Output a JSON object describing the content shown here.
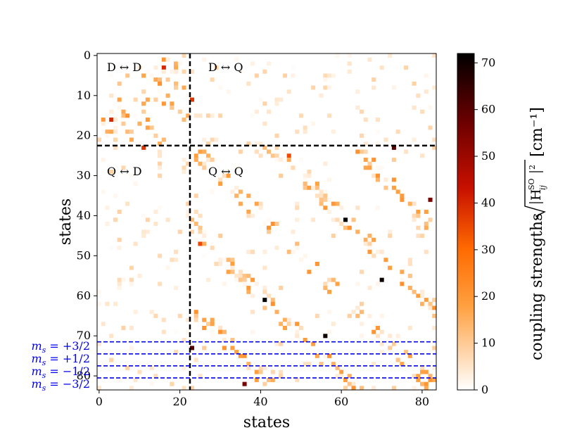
{
  "chart_data": {
    "type": "heatmap",
    "xlabel": "states",
    "ylabel": "states",
    "n_states": 84,
    "x_ticks": [
      0,
      20,
      40,
      60,
      80
    ],
    "y_ticks": [
      0,
      10,
      20,
      30,
      40,
      50,
      60,
      70,
      80
    ],
    "doublet_boundary": 23,
    "region_labels": {
      "dd": "D ↔ D",
      "dq": "D ↔ Q",
      "qd": "Q ↔ D",
      "qq": "Q ↔ Q"
    },
    "ms_lines": [
      {
        "value": 72,
        "label": "m_s = +3/2"
      },
      {
        "value": 75,
        "label": "m_s = +1/2"
      },
      {
        "value": 78,
        "label": "m_s = −1/2"
      },
      {
        "value": 81,
        "label": "m_s = −3/2"
      }
    ],
    "ms_label_parts": [
      {
        "m": "m",
        "s": "s",
        "rest": " = +3/2"
      },
      {
        "m": "m",
        "s": "s",
        "rest": " = +1/2"
      },
      {
        "m": "m",
        "s": "s",
        "rest": " = −1/2"
      },
      {
        "m": "m",
        "s": "s",
        "rest": " = −3/2"
      }
    ],
    "colorbar": {
      "label_prefix": "coupling strengths",
      "label_unit": "[cm⁻¹]",
      "label_math": "√|H_ij^SO|²",
      "min": 0,
      "max": 72,
      "ticks": [
        0,
        10,
        20,
        30,
        40,
        50,
        60,
        70
      ],
      "colormap": "gist_heat_r"
    },
    "colors": {
      "boundary_line": "#000000",
      "ms_line": "#0000ee"
    },
    "hotspots": [
      {
        "row": 41,
        "col": 61,
        "value": 72
      },
      {
        "row": 61,
        "col": 41,
        "value": 72
      },
      {
        "row": 56,
        "col": 70,
        "value": 70
      },
      {
        "row": 70,
        "col": 56,
        "value": 70
      },
      {
        "row": 23,
        "col": 73,
        "value": 60
      },
      {
        "row": 73,
        "col": 23,
        "value": 60
      },
      {
        "row": 82,
        "col": 36,
        "value": 55
      },
      {
        "row": 36,
        "col": 82,
        "value": 55
      },
      {
        "row": 3,
        "col": 16,
        "value": 40
      },
      {
        "row": 16,
        "col": 3,
        "value": 40
      },
      {
        "row": 23,
        "col": 11,
        "value": 38
      },
      {
        "row": 11,
        "col": 23,
        "value": 38
      },
      {
        "row": 47,
        "col": 25,
        "value": 35
      },
      {
        "row": 25,
        "col": 47,
        "value": 35
      }
    ]
  }
}
